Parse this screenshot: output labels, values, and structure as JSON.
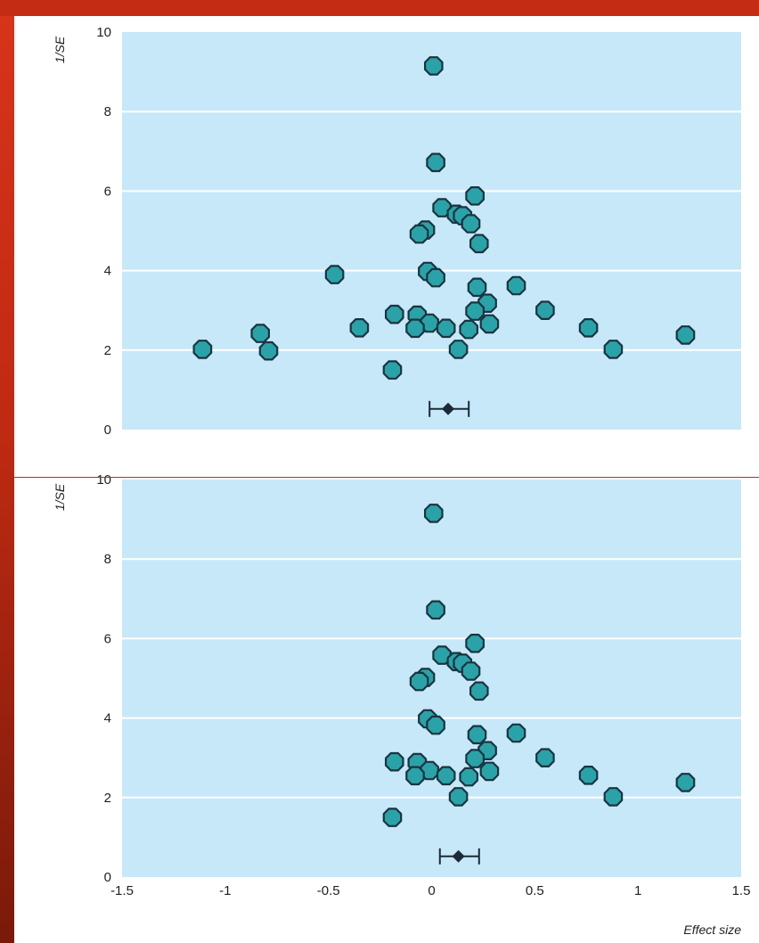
{
  "colors": {
    "plot_background": "#c7e8f8",
    "gridline": "#ffffff",
    "marker_fill": "#2aa3a8",
    "marker_stroke": "#1c3340",
    "summary": "#1c2a38",
    "slide_frame": "#c42c14"
  },
  "chart_data": [
    {
      "type": "scatter",
      "title": "",
      "xlabel": "",
      "ylabel": "1/SE",
      "xlim": [
        -1.5,
        1.5
      ],
      "ylim": [
        0,
        10
      ],
      "yticks": [
        0,
        2,
        4,
        6,
        8,
        10
      ],
      "grid": "horizontal",
      "legend": "none",
      "points": [
        {
          "x": 0.01,
          "y": 9.15
        },
        {
          "x": 0.02,
          "y": 6.72
        },
        {
          "x": 0.21,
          "y": 5.88
        },
        {
          "x": 0.05,
          "y": 5.58
        },
        {
          "x": 0.12,
          "y": 5.42
        },
        {
          "x": 0.15,
          "y": 5.38
        },
        {
          "x": 0.19,
          "y": 5.18
        },
        {
          "x": -0.03,
          "y": 5.02
        },
        {
          "x": -0.06,
          "y": 4.92
        },
        {
          "x": 0.23,
          "y": 4.68
        },
        {
          "x": -0.47,
          "y": 3.9
        },
        {
          "x": -0.02,
          "y": 3.98
        },
        {
          "x": 0.02,
          "y": 3.82
        },
        {
          "x": 0.41,
          "y": 3.62
        },
        {
          "x": 0.22,
          "y": 3.58
        },
        {
          "x": 0.27,
          "y": 3.18
        },
        {
          "x": 0.21,
          "y": 2.98
        },
        {
          "x": 0.55,
          "y": 3.0
        },
        {
          "x": -0.18,
          "y": 2.9
        },
        {
          "x": -0.07,
          "y": 2.88
        },
        {
          "x": -0.01,
          "y": 2.68
        },
        {
          "x": 0.28,
          "y": 2.66
        },
        {
          "x": -0.08,
          "y": 2.55
        },
        {
          "x": 0.07,
          "y": 2.55
        },
        {
          "x": 0.18,
          "y": 2.52
        },
        {
          "x": -0.35,
          "y": 2.56
        },
        {
          "x": 0.76,
          "y": 2.56
        },
        {
          "x": -0.83,
          "y": 2.42
        },
        {
          "x": 1.23,
          "y": 2.38
        },
        {
          "x": -1.11,
          "y": 2.02
        },
        {
          "x": -0.79,
          "y": 1.98
        },
        {
          "x": 0.13,
          "y": 2.02
        },
        {
          "x": 0.88,
          "y": 2.02
        },
        {
          "x": -0.19,
          "y": 1.5
        }
      ],
      "summary": {
        "estimate": 0.08,
        "ci": [
          -0.01,
          0.18
        ],
        "y": 0.52
      }
    },
    {
      "type": "scatter",
      "title": "",
      "xlabel": "Effect size",
      "ylabel": "1/SE",
      "xlim": [
        -1.5,
        1.5
      ],
      "ylim": [
        0,
        10
      ],
      "xticks": [
        -1.5,
        -1,
        -0.5,
        0,
        0.5,
        1,
        1.5
      ],
      "xtick_labels": [
        "-1.5",
        "-1",
        "-0.5",
        "0",
        "0.5",
        "1",
        "1.5"
      ],
      "yticks": [
        0,
        2,
        4,
        6,
        8,
        10
      ],
      "grid": "horizontal",
      "legend": "none",
      "points": [
        {
          "x": 0.01,
          "y": 9.15
        },
        {
          "x": 0.02,
          "y": 6.72
        },
        {
          "x": 0.21,
          "y": 5.88
        },
        {
          "x": 0.05,
          "y": 5.58
        },
        {
          "x": 0.12,
          "y": 5.42
        },
        {
          "x": 0.15,
          "y": 5.38
        },
        {
          "x": 0.19,
          "y": 5.18
        },
        {
          "x": -0.03,
          "y": 5.02
        },
        {
          "x": -0.06,
          "y": 4.92
        },
        {
          "x": 0.23,
          "y": 4.68
        },
        {
          "x": -0.02,
          "y": 3.98
        },
        {
          "x": 0.02,
          "y": 3.82
        },
        {
          "x": 0.41,
          "y": 3.62
        },
        {
          "x": 0.22,
          "y": 3.58
        },
        {
          "x": 0.27,
          "y": 3.18
        },
        {
          "x": 0.21,
          "y": 2.98
        },
        {
          "x": 0.55,
          "y": 3.0
        },
        {
          "x": -0.18,
          "y": 2.9
        },
        {
          "x": -0.07,
          "y": 2.88
        },
        {
          "x": -0.01,
          "y": 2.68
        },
        {
          "x": 0.28,
          "y": 2.66
        },
        {
          "x": -0.08,
          "y": 2.55
        },
        {
          "x": 0.07,
          "y": 2.55
        },
        {
          "x": 0.18,
          "y": 2.52
        },
        {
          "x": 0.76,
          "y": 2.56
        },
        {
          "x": 1.23,
          "y": 2.38
        },
        {
          "x": 0.13,
          "y": 2.02
        },
        {
          "x": 0.88,
          "y": 2.02
        },
        {
          "x": -0.19,
          "y": 1.5
        }
      ],
      "summary": {
        "estimate": 0.13,
        "ci": [
          0.04,
          0.23
        ],
        "y": 0.52
      }
    }
  ]
}
